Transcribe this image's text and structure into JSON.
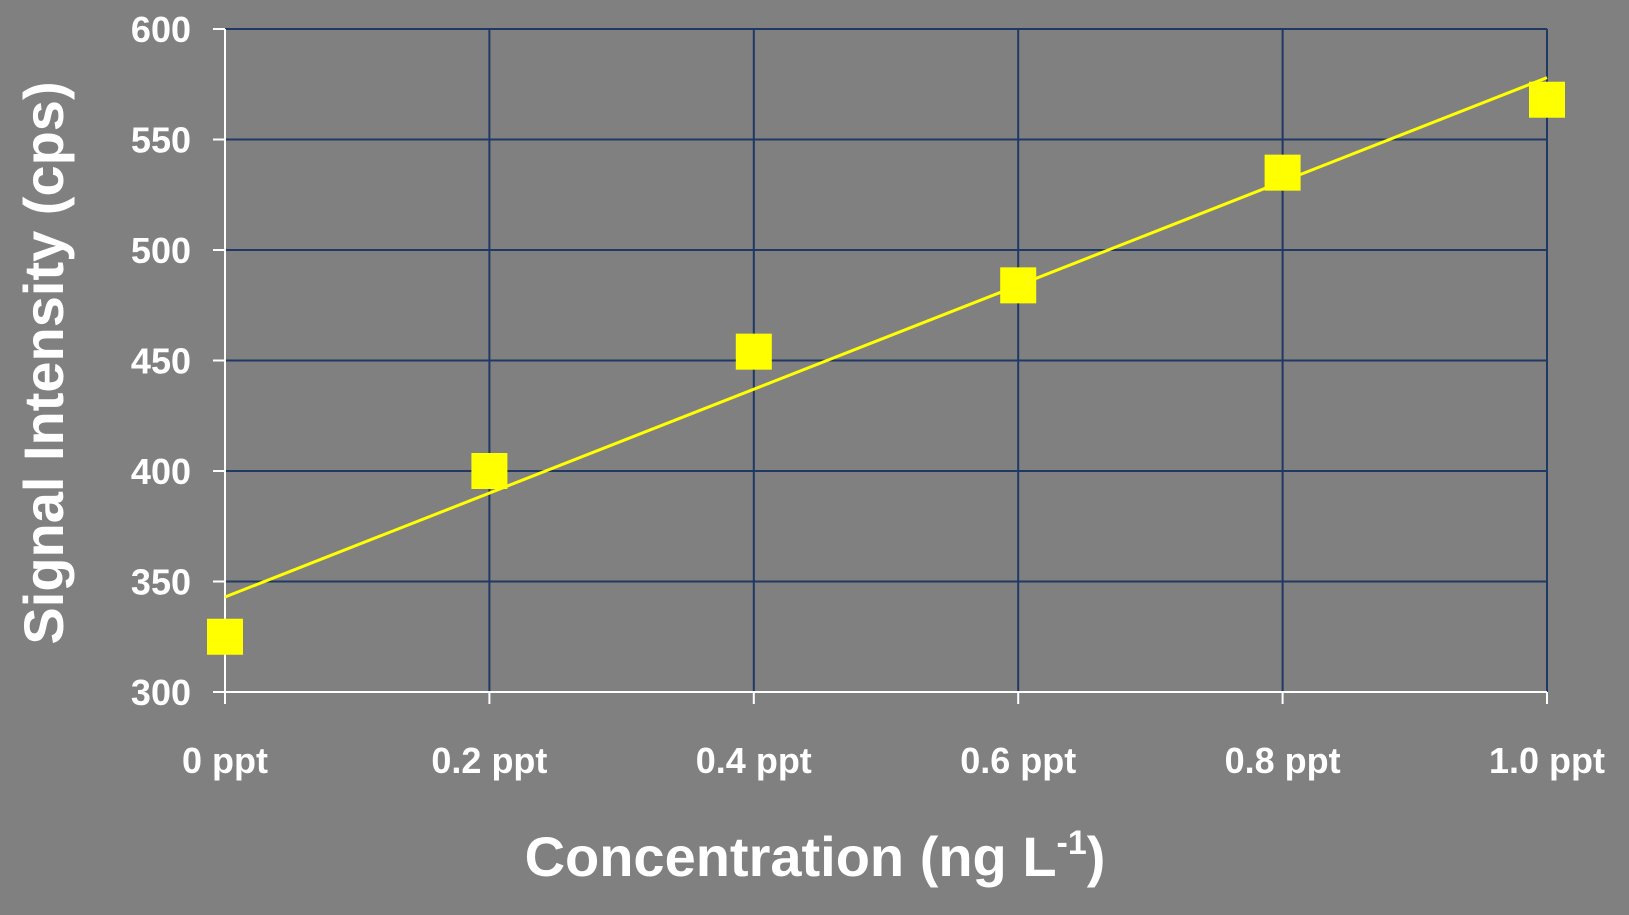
{
  "chart_data": {
    "type": "scatter",
    "x": [
      0,
      0.2,
      0.4,
      0.6,
      0.8,
      1.0
    ],
    "x_tick_labels": [
      "0 ppt",
      "0.2 ppt",
      "0.4 ppt",
      "0.6 ppt",
      "0.8 ppt",
      "1.0 ppt"
    ],
    "y_ticks": [
      300,
      350,
      400,
      450,
      500,
      550,
      600
    ],
    "y_tick_labels": [
      "300",
      "350",
      "400",
      "450",
      "500",
      "550",
      "600"
    ],
    "series": [
      {
        "values": [
          325,
          400,
          454,
          484,
          535,
          568
        ]
      }
    ],
    "trendline": {
      "type": "linear",
      "y_at_xmin": 343,
      "y_at_xmax": 578
    },
    "xlim": [
      0,
      1.0
    ],
    "ylim": [
      300,
      600
    ],
    "xlabel": "Concentration (ng L",
    "xlabel_superscript": "-1",
    "xlabel_suffix": ")",
    "ylabel": "Signal Intensity (cps)",
    "grid": true,
    "legend": "none",
    "colors": {
      "background": "#808080",
      "grid": "#1f3864",
      "axis": "#ffffff",
      "marker": "#ffff00",
      "trendline": "#ffff00",
      "text": "#ffffff"
    }
  }
}
